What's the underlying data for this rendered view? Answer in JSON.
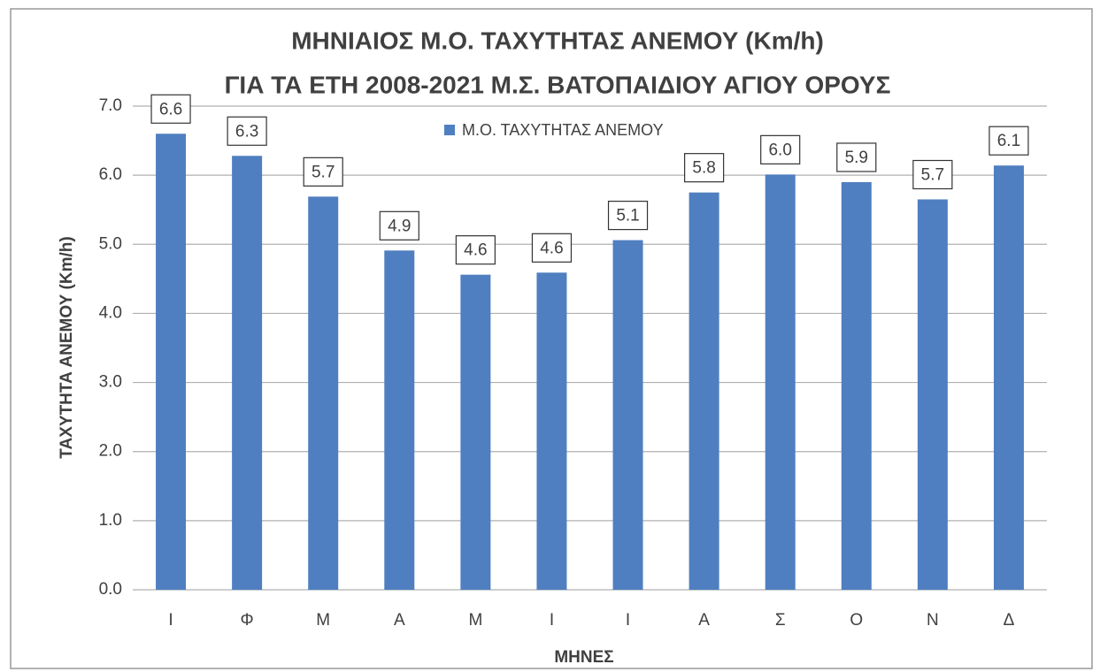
{
  "chart_data": {
    "type": "bar",
    "title": "ΜΗΝΙΑΙΟΣ Μ.Ο. ΤΑΧΥΤΗΤΑΣ ΑΝΕΜΟΥ (Km/h)",
    "subtitle": "ΓΙΑ ΤΑ ΕΤΗ 2008-2021 Μ.Σ. ΒΑΤΟΠΑΙΔΙΟΥ ΑΓΙΟΥ ΟΡΟΥΣ",
    "x_label": "ΜΗΝΕΣ",
    "y_label": "ΤΑΧΥΤΗΤΑ ΑΝΕΜΟΥ (Km/h)",
    "categories": [
      "Ι",
      "Φ",
      "Μ",
      "Α",
      "Μ",
      "Ι",
      "Ι",
      "Α",
      "Σ",
      "Ο",
      "Ν",
      "Δ"
    ],
    "series": [
      {
        "name": "Μ.Ο. ΤΑΧΥΤΗΤΑΣ ΑΝΕΜΟΥ",
        "color": "#4f7fc0",
        "values": [
          6.6,
          6.28,
          5.69,
          4.91,
          4.56,
          4.59,
          5.06,
          5.75,
          6.01,
          5.9,
          5.65,
          6.14
        ],
        "value_labels": [
          "6.6",
          "6.3",
          "5.7",
          "4.9",
          "4.6",
          "4.6",
          "5.1",
          "5.8",
          "6.0",
          "5.9",
          "5.7",
          "6.1"
        ]
      }
    ],
    "ylim": [
      0,
      7
    ],
    "yticks": [
      {
        "value": 0,
        "label": "0.0"
      },
      {
        "value": 1,
        "label": "1.0"
      },
      {
        "value": 2,
        "label": "2.0"
      },
      {
        "value": 3,
        "label": "3.0"
      },
      {
        "value": 4,
        "label": "4.0"
      },
      {
        "value": 5,
        "label": "5.0"
      },
      {
        "value": 6,
        "label": "6.0"
      },
      {
        "value": 7,
        "label": "7.0"
      }
    ],
    "grid": true,
    "legend": "top"
  }
}
